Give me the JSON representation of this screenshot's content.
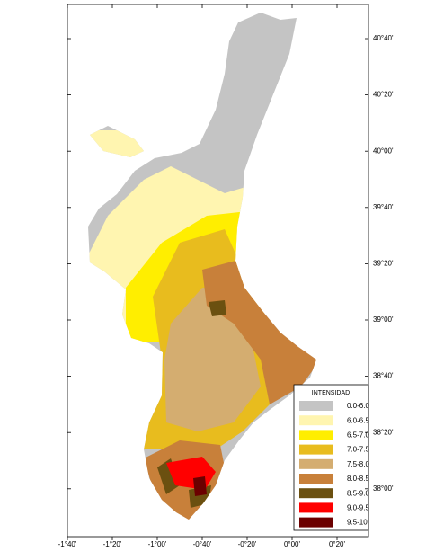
{
  "map": {
    "x_ticks": [
      "-1°40'",
      "-1°20'",
      "-1°00'",
      "-0°40'",
      "-0°20'",
      "0°00'",
      "0°20'"
    ],
    "y_ticks": [
      "40°40'",
      "40°20'",
      "40°00'",
      "39°40'",
      "39°20'",
      "39°00'",
      "38°40'",
      "38°20'",
      "38°00'"
    ],
    "legend": {
      "title": "INTENSIDAD",
      "items": [
        {
          "label": "0.0-6.0",
          "color": "#c4c4c4"
        },
        {
          "label": "6.0-6.5",
          "color": "#fff5b0"
        },
        {
          "label": "6.5-7.0",
          "color": "#ffee00"
        },
        {
          "label": "7.0-7.5",
          "color": "#e8bc1e"
        },
        {
          "label": "7.5-8.0",
          "color": "#d4ad70"
        },
        {
          "label": "8.0-8.5",
          "color": "#c8803a"
        },
        {
          "label": "8.5-9.0",
          "color": "#6b5010"
        },
        {
          "label": "9.0-9.5",
          "color": "#ff0000"
        },
        {
          "label": "9.5-10",
          "color": "#6b0000"
        }
      ]
    }
  }
}
